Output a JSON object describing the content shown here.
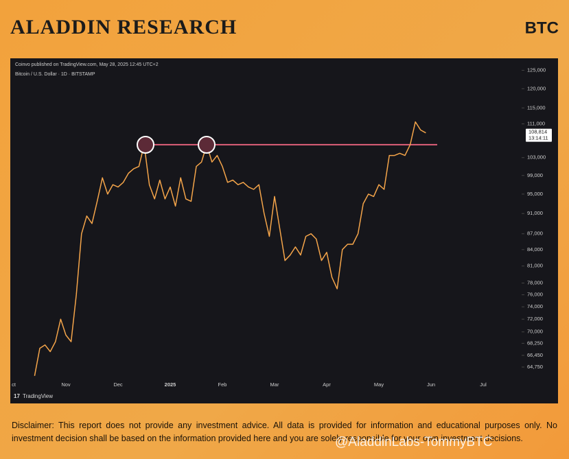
{
  "header": {
    "title": "ALADDIN RESEARCH",
    "ticker": "BTC"
  },
  "chart_data": {
    "type": "line",
    "published": "Coinvo published on TradingView.com, May 28, 2025 12:45 UTC+2",
    "subtitle": "Bitcoin / U.S. Dollar · 1D · BITSTAMP",
    "brand": "TradingView",
    "yscale": "log",
    "ylim": [
      63000,
      127000
    ],
    "yticks": [
      {
        "value": 125000,
        "label": "125,000"
      },
      {
        "value": 120000,
        "label": "120,000"
      },
      {
        "value": 115000,
        "label": "115,000"
      },
      {
        "value": 111000,
        "label": "111,000"
      },
      {
        "value": 103000,
        "label": "103,000"
      },
      {
        "value": 99000,
        "label": "99,000"
      },
      {
        "value": 95000,
        "label": "95,000"
      },
      {
        "value": 91000,
        "label": "91,000"
      },
      {
        "value": 87000,
        "label": "87,000"
      },
      {
        "value": 84000,
        "label": "84,000"
      },
      {
        "value": 81000,
        "label": "81,000"
      },
      {
        "value": 78000,
        "label": "78,000"
      },
      {
        "value": 76000,
        "label": "76,000"
      },
      {
        "value": 74000,
        "label": "74,000"
      },
      {
        "value": 72000,
        "label": "72,000"
      },
      {
        "value": 70000,
        "label": "70,000"
      },
      {
        "value": 68250,
        "label": "68,250"
      },
      {
        "value": 66450,
        "label": "66,450"
      },
      {
        "value": 64750,
        "label": "64,750"
      }
    ],
    "categories": [
      "ct",
      null,
      null,
      null,
      null,
      null,
      null,
      null,
      null,
      null,
      "Nov",
      null,
      null,
      null,
      null,
      null,
      null,
      null,
      null,
      null,
      "Dec",
      null,
      null,
      null,
      null,
      null,
      null,
      null,
      null,
      null,
      "2025",
      null,
      null,
      null,
      null,
      null,
      null,
      null,
      null,
      null,
      "Feb",
      null,
      null,
      null,
      null,
      null,
      null,
      null,
      null,
      null,
      "Mar",
      null,
      null,
      null,
      null,
      null,
      null,
      null,
      null,
      null,
      "Apr",
      null,
      null,
      null,
      null,
      null,
      null,
      null,
      null,
      null,
      "May",
      null,
      null,
      null,
      null,
      null,
      null,
      null,
      null,
      null,
      "Jun",
      null,
      null,
      null,
      null,
      null,
      null,
      null,
      null,
      null,
      "Jul"
    ],
    "values": [
      null,
      null,
      null,
      null,
      63500,
      67500,
      68000,
      67000,
      68500,
      72000,
      69500,
      68500,
      76000,
      87000,
      90500,
      89000,
      93500,
      98500,
      95000,
      97000,
      96500,
      97500,
      99500,
      100500,
      101000,
      106000,
      97000,
      94000,
      98000,
      94000,
      96500,
      92500,
      98500,
      94000,
      93500,
      101000,
      102000,
      106000,
      102000,
      103500,
      101000,
      97500,
      98000,
      97000,
      97500,
      96500,
      96000,
      97000,
      91000,
      86500,
      94500,
      88000,
      82000,
      83000,
      84500,
      83000,
      86500,
      87000,
      86000,
      82000,
      83500,
      79000,
      77000,
      84000,
      85000,
      85000,
      87000,
      93000,
      95000,
      94500,
      97000,
      96000,
      103500,
      103500,
      104000,
      103500,
      106000,
      111500,
      109500,
      108800,
      null,
      null,
      null,
      null,
      null,
      null,
      null,
      null,
      null,
      null,
      null
    ],
    "color": "#f5a54a",
    "reference_line": {
      "value": 106000,
      "color": "#e0607a"
    },
    "last_price": {
      "value": 108814,
      "label": "108,814"
    },
    "countdown": "13:14:11"
  },
  "disclaimer": "Disclaimer: This report does not provide any investment advice. All data is provided for information and educational purposes only. No investment decision shall be based on the information provided here and you are solely responsible for your own investment decisions.",
  "watermark": "@AladdinLabs-TommyBTC"
}
